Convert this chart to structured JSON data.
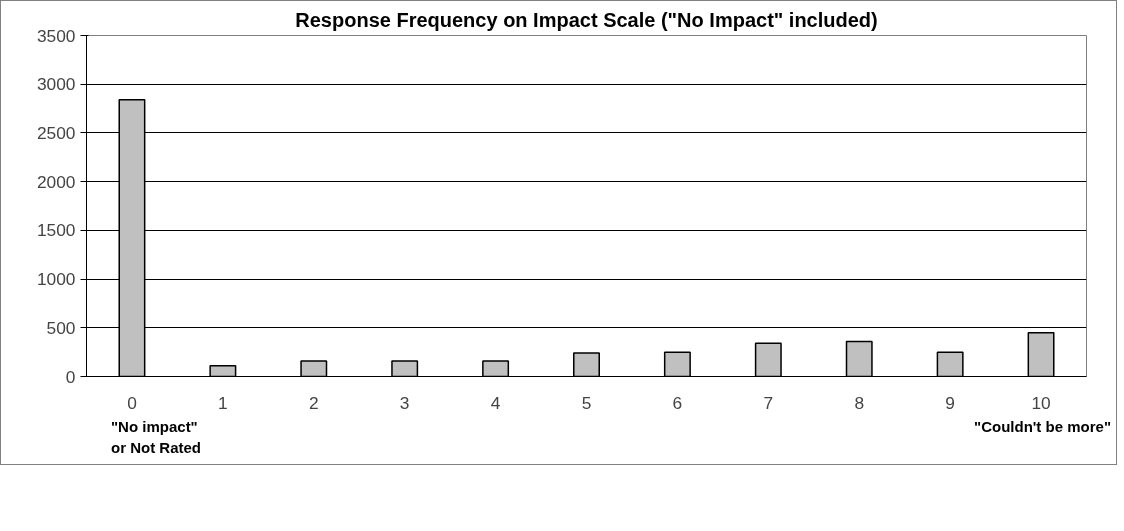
{
  "chart_data": {
    "type": "bar",
    "title": "Response Frequency on Impact Scale (\"No Impact\" included)",
    "categories": [
      "0",
      "1",
      "2",
      "3",
      "4",
      "5",
      "6",
      "7",
      "8",
      "9",
      "10"
    ],
    "values": [
      2840,
      110,
      160,
      160,
      160,
      240,
      250,
      340,
      360,
      250,
      450
    ],
    "color": "#c0c0c0",
    "ylim": [
      0,
      3500
    ],
    "yticks": [
      0,
      500,
      1000,
      1500,
      2000,
      2500,
      3000,
      3500
    ],
    "grid": "y",
    "annotations": [
      "\"No impact\"\nor Not Rated",
      "\"Couldn't be more\""
    ]
  }
}
